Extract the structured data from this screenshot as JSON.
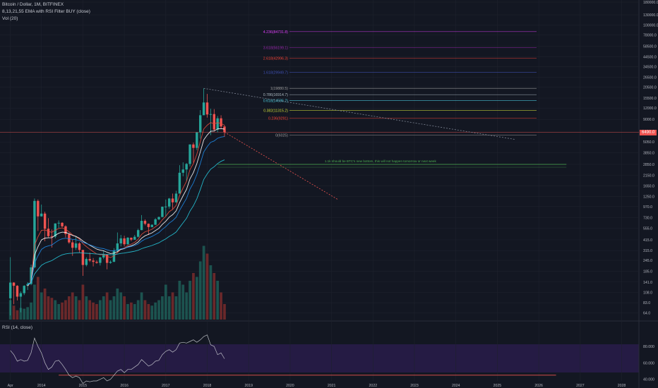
{
  "header": {
    "symbol_line": "Bitcoin / Dollar, 1M, BITFINEX",
    "indicator_line": "8,13,21,55 EMA with RSI Filter BUY (close)",
    "volume_line": "Vol (20)",
    "rsi_line": "RSI (14, close)"
  },
  "last_price": "6490.0",
  "colors": {
    "background": "#131722",
    "up": "#26a69a",
    "down": "#ef5350",
    "rsi_band": "#2a1d4d",
    "grid": "#1e222d"
  },
  "chart_data": [
    {
      "type": "candlestick",
      "log_scale": true,
      "grid": true,
      "ylim": [
        54,
        190000
      ],
      "xlim": [
        "2013-01",
        "2028-06"
      ],
      "x_ticks": [
        "Apr",
        "2014",
        "2015",
        "2016",
        "2017",
        "2018",
        "2019",
        "2020",
        "2021",
        "2022",
        "2023",
        "2024",
        "2025",
        "2026",
        "2027",
        "2028"
      ],
      "y_ticks": [
        "180000.0",
        "130000.0",
        "100000.0",
        "78000.0",
        "58500.0",
        "44500.0",
        "34500.0",
        "26500.0",
        "20500.0",
        "15500.0",
        "12000.0",
        "9000.0",
        "6490.0",
        "5050.0",
        "3850.0",
        "2850.0",
        "2150.0",
        "1650.0",
        "1250.0",
        "970.0",
        "730.0",
        "555.0",
        "415.0",
        "315.0",
        "245.0",
        "185.0",
        "141.0",
        "108.0",
        "83.0",
        "64.0"
      ],
      "candles": [
        {
          "t": "2013-04",
          "o": 93,
          "h": 266,
          "l": 60,
          "c": 139
        },
        {
          "t": "2013-05",
          "o": 139,
          "h": 140,
          "l": 80,
          "c": 128
        },
        {
          "t": "2013-06",
          "o": 128,
          "h": 130,
          "l": 88,
          "c": 97
        },
        {
          "t": "2013-07",
          "o": 97,
          "h": 111,
          "l": 65,
          "c": 106
        },
        {
          "t": "2013-08",
          "o": 106,
          "h": 130,
          "l": 101,
          "c": 128
        },
        {
          "t": "2013-09",
          "o": 128,
          "h": 140,
          "l": 115,
          "c": 134
        },
        {
          "t": "2013-10",
          "o": 134,
          "h": 220,
          "l": 130,
          "c": 205
        },
        {
          "t": "2013-11",
          "o": 205,
          "h": 1190,
          "l": 200,
          "c": 1120
        },
        {
          "t": "2013-12",
          "o": 1120,
          "h": 1163,
          "l": 520,
          "c": 754
        },
        {
          "t": "2014-01",
          "o": 754,
          "h": 1020,
          "l": 750,
          "c": 810
        },
        {
          "t": "2014-02",
          "o": 810,
          "h": 850,
          "l": 400,
          "c": 550
        },
        {
          "t": "2014-03",
          "o": 550,
          "h": 720,
          "l": 440,
          "c": 455
        },
        {
          "t": "2014-04",
          "o": 455,
          "h": 540,
          "l": 340,
          "c": 450
        },
        {
          "t": "2014-05",
          "o": 450,
          "h": 630,
          "l": 430,
          "c": 630
        },
        {
          "t": "2014-06",
          "o": 630,
          "h": 680,
          "l": 560,
          "c": 640
        },
        {
          "t": "2014-07",
          "o": 640,
          "h": 650,
          "l": 570,
          "c": 585
        },
        {
          "t": "2014-08",
          "o": 585,
          "h": 600,
          "l": 440,
          "c": 480
        },
        {
          "t": "2014-09",
          "o": 480,
          "h": 490,
          "l": 375,
          "c": 388
        },
        {
          "t": "2014-10",
          "o": 388,
          "h": 415,
          "l": 275,
          "c": 338
        },
        {
          "t": "2014-11",
          "o": 338,
          "h": 460,
          "l": 320,
          "c": 378
        },
        {
          "t": "2014-12",
          "o": 378,
          "h": 390,
          "l": 300,
          "c": 320
        },
        {
          "t": "2015-01",
          "o": 320,
          "h": 320,
          "l": 165,
          "c": 218
        },
        {
          "t": "2015-02",
          "o": 218,
          "h": 265,
          "l": 210,
          "c": 254
        },
        {
          "t": "2015-03",
          "o": 254,
          "h": 300,
          "l": 235,
          "c": 244
        },
        {
          "t": "2015-04",
          "o": 244,
          "h": 260,
          "l": 210,
          "c": 236
        },
        {
          "t": "2015-05",
          "o": 236,
          "h": 246,
          "l": 225,
          "c": 230
        },
        {
          "t": "2015-06",
          "o": 230,
          "h": 268,
          "l": 215,
          "c": 264
        },
        {
          "t": "2015-07",
          "o": 264,
          "h": 315,
          "l": 253,
          "c": 284
        },
        {
          "t": "2015-08",
          "o": 284,
          "h": 285,
          "l": 195,
          "c": 230
        },
        {
          "t": "2015-09",
          "o": 230,
          "h": 245,
          "l": 225,
          "c": 236
        },
        {
          "t": "2015-10",
          "o": 236,
          "h": 335,
          "l": 235,
          "c": 313
        },
        {
          "t": "2015-11",
          "o": 313,
          "h": 500,
          "l": 300,
          "c": 378
        },
        {
          "t": "2015-12",
          "o": 378,
          "h": 470,
          "l": 350,
          "c": 430
        },
        {
          "t": "2016-01",
          "o": 430,
          "h": 460,
          "l": 350,
          "c": 370
        },
        {
          "t": "2016-02",
          "o": 370,
          "h": 445,
          "l": 365,
          "c": 437
        },
        {
          "t": "2016-03",
          "o": 437,
          "h": 440,
          "l": 400,
          "c": 416
        },
        {
          "t": "2016-04",
          "o": 416,
          "h": 470,
          "l": 415,
          "c": 448
        },
        {
          "t": "2016-05",
          "o": 448,
          "h": 550,
          "l": 440,
          "c": 531
        },
        {
          "t": "2016-06",
          "o": 531,
          "h": 780,
          "l": 530,
          "c": 673
        },
        {
          "t": "2016-07",
          "o": 673,
          "h": 700,
          "l": 600,
          "c": 624
        },
        {
          "t": "2016-08",
          "o": 624,
          "h": 630,
          "l": 470,
          "c": 574
        },
        {
          "t": "2016-09",
          "o": 574,
          "h": 615,
          "l": 570,
          "c": 609
        },
        {
          "t": "2016-10",
          "o": 609,
          "h": 720,
          "l": 605,
          "c": 700
        },
        {
          "t": "2016-11",
          "o": 700,
          "h": 750,
          "l": 685,
          "c": 742
        },
        {
          "t": "2016-12",
          "o": 742,
          "h": 970,
          "l": 740,
          "c": 966
        },
        {
          "t": "2017-01",
          "o": 966,
          "h": 1160,
          "l": 750,
          "c": 970
        },
        {
          "t": "2017-02",
          "o": 970,
          "h": 1210,
          "l": 920,
          "c": 1190
        },
        {
          "t": "2017-03",
          "o": 1190,
          "h": 1350,
          "l": 890,
          "c": 1080
        },
        {
          "t": "2017-04",
          "o": 1080,
          "h": 1450,
          "l": 1070,
          "c": 1350
        },
        {
          "t": "2017-05",
          "o": 1350,
          "h": 2790,
          "l": 1350,
          "c": 2300
        },
        {
          "t": "2017-06",
          "o": 2300,
          "h": 3000,
          "l": 2100,
          "c": 2500
        },
        {
          "t": "2017-07",
          "o": 2500,
          "h": 2950,
          "l": 1850,
          "c": 2880
        },
        {
          "t": "2017-08",
          "o": 2880,
          "h": 4750,
          "l": 2700,
          "c": 4740
        },
        {
          "t": "2017-09",
          "o": 4740,
          "h": 4980,
          "l": 2970,
          "c": 4340
        },
        {
          "t": "2017-10",
          "o": 4340,
          "h": 6450,
          "l": 4100,
          "c": 6450
        },
        {
          "t": "2017-11",
          "o": 6450,
          "h": 11400,
          "l": 5500,
          "c": 10000
        },
        {
          "t": "2017-12",
          "o": 10000,
          "h": 19891,
          "l": 10700,
          "c": 13850
        },
        {
          "t": "2018-01",
          "o": 13850,
          "h": 17250,
          "l": 9400,
          "c": 10200
        },
        {
          "t": "2018-02",
          "o": 10200,
          "h": 11800,
          "l": 6000,
          "c": 10300
        },
        {
          "t": "2018-03",
          "o": 10300,
          "h": 11700,
          "l": 6600,
          "c": 6930
        },
        {
          "t": "2018-04",
          "o": 6930,
          "h": 9800,
          "l": 6450,
          "c": 9240
        },
        {
          "t": "2018-05",
          "o": 9240,
          "h": 10000,
          "l": 7050,
          "c": 7500
        },
        {
          "t": "2018-06",
          "o": 7500,
          "h": 7780,
          "l": 5750,
          "c": 6490
        }
      ],
      "ema_series": [
        {
          "name": "EMA 8",
          "color": "#e74c3c"
        },
        {
          "name": "EMA 13",
          "color": "#ffffff"
        },
        {
          "name": "EMA 21",
          "color": "#1e88e5"
        },
        {
          "name": "EMA 55",
          "color": "#26c6da"
        }
      ],
      "fib_levels": [
        {
          "label": "4.236(84731.8)",
          "value": 84731.8,
          "color": "#e040fb"
        },
        {
          "label": "3.618(56199.1)",
          "value": 56199.1,
          "color": "#9c27b0"
        },
        {
          "label": "2.618(42996.3)",
          "value": 42996.3,
          "color": "#f44336"
        },
        {
          "label": "1.618(29949.7)",
          "value": 29949.7,
          "color": "#3f51b5"
        },
        {
          "label": "1(19880.5)",
          "value": 19880.5,
          "color": "#9e9e9e"
        },
        {
          "label": "0.786(16914.7)",
          "value": 16914.7,
          "color": "#b0bec5"
        },
        {
          "label": "0.618(14586.2)",
          "value": 14586.2,
          "color": "#4dd0e1"
        },
        {
          "label": "0.382(11315.2)",
          "value": 11315.2,
          "color": "#cddc39"
        },
        {
          "label": "0.236(9291)",
          "value": 9291,
          "color": "#f44336"
        },
        {
          "label": "0(6025)",
          "value": 6025,
          "color": "#9e9e9e"
        }
      ],
      "annotation": "1.1k should be BTC's new bottom, this will not happen tomorrow or next week",
      "volume_rows": [
        0.25,
        0.18,
        0.12,
        0.15,
        0.14,
        0.16,
        0.22,
        0.45,
        0.55,
        0.35,
        0.4,
        0.3,
        0.28,
        0.25,
        0.2,
        0.22,
        0.25,
        0.3,
        0.35,
        0.3,
        0.25,
        0.45,
        0.3,
        0.25,
        0.22,
        0.2,
        0.25,
        0.3,
        0.35,
        0.25,
        0.3,
        0.4,
        0.35,
        0.3,
        0.2,
        0.22,
        0.2,
        0.25,
        0.35,
        0.25,
        0.2,
        0.18,
        0.22,
        0.25,
        0.3,
        0.45,
        0.3,
        0.35,
        0.3,
        0.5,
        0.45,
        0.35,
        0.5,
        0.6,
        0.55,
        0.75,
        0.95,
        0.85,
        0.7,
        0.6,
        0.5,
        0.35,
        0.2
      ],
      "rsi": {
        "ylim": [
          38,
          98
        ],
        "y_ticks": [
          "80.000",
          "60.000",
          "40.000"
        ],
        "level_lines": [
          45
        ],
        "values": [
          75,
          70,
          62,
          64,
          62,
          63,
          72,
          90,
          80,
          72,
          60,
          52,
          55,
          62,
          63,
          58,
          52,
          45,
          42,
          44,
          42,
          35,
          38,
          37,
          38,
          38,
          40,
          42,
          38,
          40,
          45,
          50,
          52,
          48,
          52,
          52,
          55,
          58,
          64,
          60,
          56,
          58,
          62,
          63,
          70,
          74,
          76,
          73,
          76,
          84,
          85,
          84,
          86,
          88,
          85,
          88,
          92,
          94,
          82,
          80,
          70,
          72,
          65
        ]
      }
    }
  ]
}
